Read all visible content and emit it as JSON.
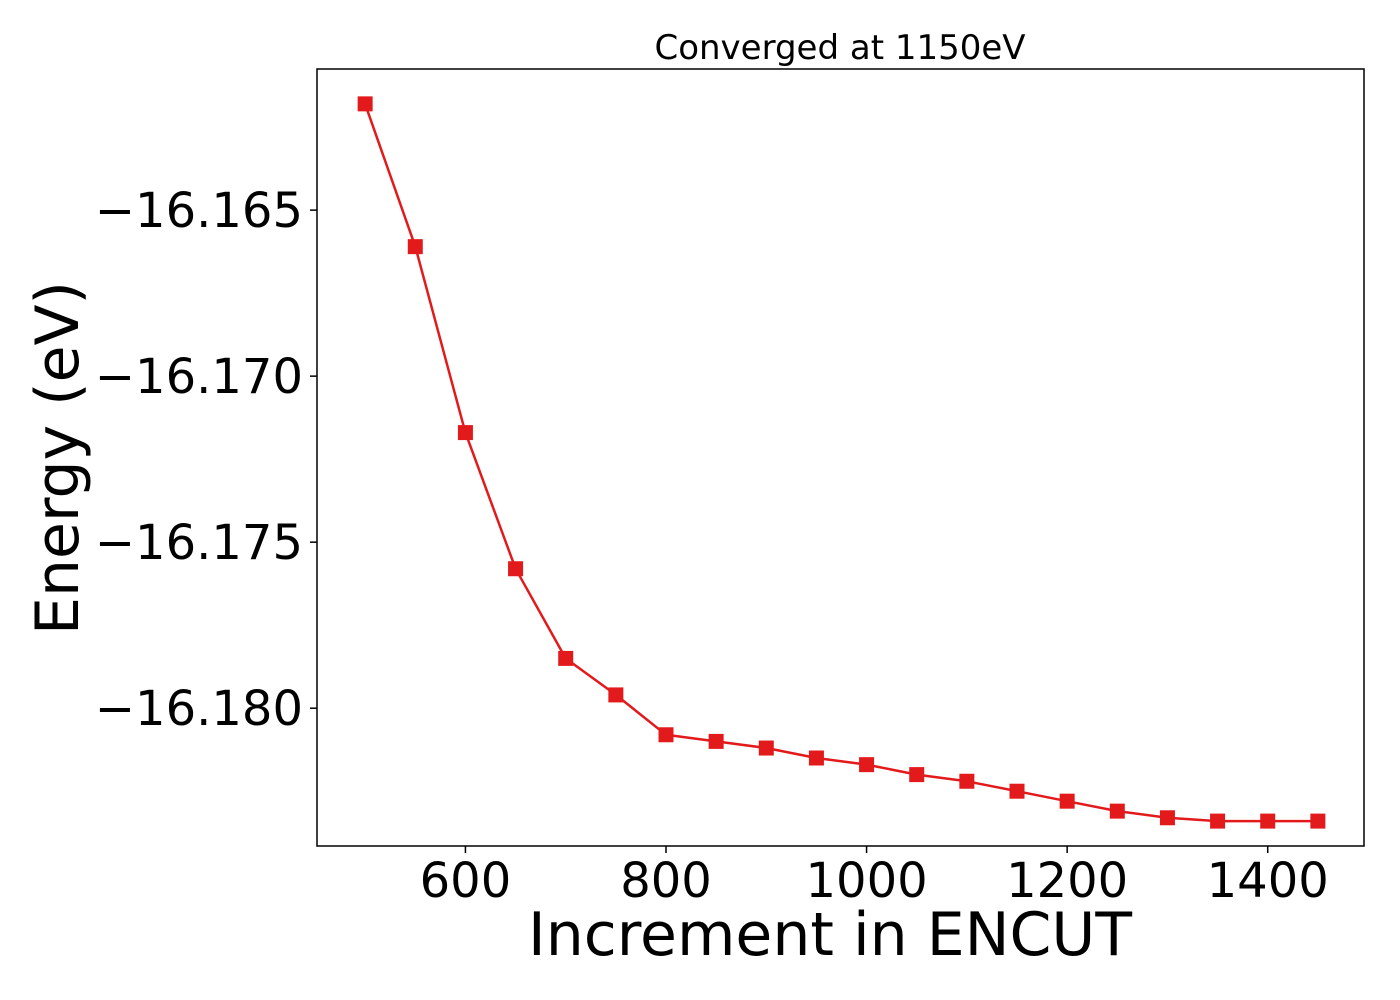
{
  "chart_data": {
    "type": "line",
    "title": "Converged at 1150eV",
    "xlabel": "Increment in ENCUT",
    "ylabel": "Energy (eV)",
    "x": [
      500,
      550,
      600,
      650,
      700,
      750,
      800,
      850,
      900,
      950,
      1000,
      1050,
      1100,
      1150,
      1200,
      1250,
      1300,
      1350,
      1400,
      1450
    ],
    "series": [
      {
        "color": "#e31a1c",
        "marker": "square",
        "values": [
          -16.1618,
          -16.1661,
          -16.1717,
          -16.1758,
          -16.1785,
          -16.1796,
          -16.1808,
          -16.181,
          -16.1812,
          -16.1815,
          -16.1817,
          -16.182,
          -16.1822,
          -16.1825,
          -16.1828,
          -16.1831,
          -16.1833,
          -16.1834,
          -16.1834,
          -16.1834
        ]
      }
    ],
    "xlim": [
      452,
      1496
    ],
    "ylim": [
      -16.18415,
      -16.16075
    ],
    "xticks": [
      600,
      800,
      1000,
      1200,
      1400
    ],
    "xtick_labels": [
      "600",
      "800",
      "1000",
      "1200",
      "1400"
    ],
    "yticks": [
      -16.165,
      -16.17,
      -16.175,
      -16.18
    ],
    "ytick_labels": [
      "−16.165",
      "−16.170",
      "−16.175",
      "−16.180"
    ],
    "grid": false,
    "legend": false
  }
}
